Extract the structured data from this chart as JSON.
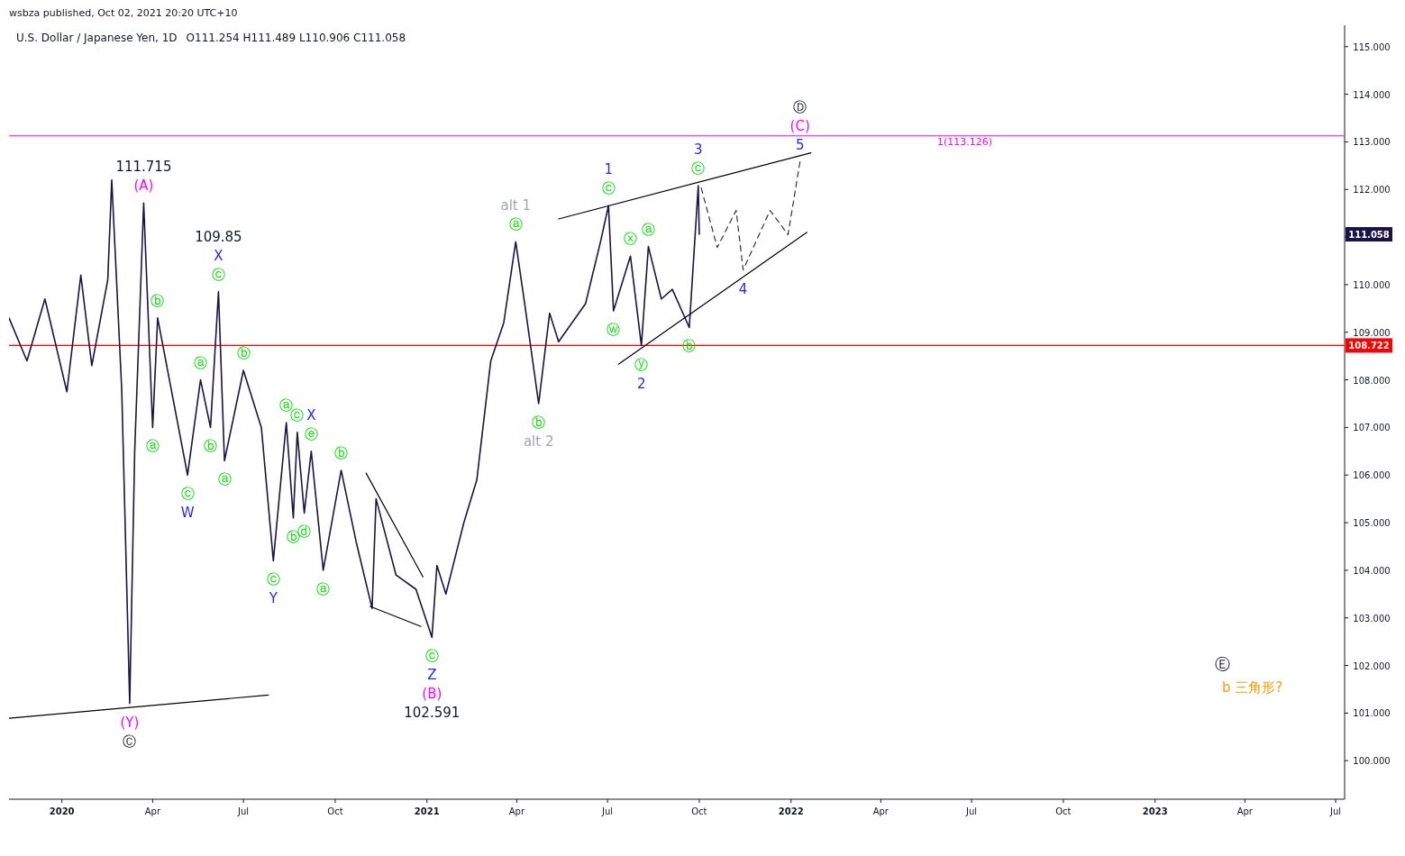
{
  "chart_data": {
    "type": "line",
    "title": "U.S. Dollar / Japanese Yen, 1D",
    "subtitle": "O111.254  H111.489  L110.906  C111.058",
    "xlim": [
      "2019-11-09",
      "2023-07-10"
    ],
    "ylim": [
      99.19,
      115.45
    ],
    "xticks": [
      {
        "value": "2020-01-01",
        "label": "2020"
      },
      {
        "value": "2020-04-01",
        "label": "Apr"
      },
      {
        "value": "2020-07-01",
        "label": "Jul"
      },
      {
        "value": "2020-10-01",
        "label": "Oct"
      },
      {
        "value": "2021-01-01",
        "label": "2021"
      },
      {
        "value": "2021-04-01",
        "label": "Apr"
      },
      {
        "value": "2021-07-01",
        "label": "Jul"
      },
      {
        "value": "2021-10-01",
        "label": "Oct"
      },
      {
        "value": "2022-01-01",
        "label": "2022"
      },
      {
        "value": "2022-04-01",
        "label": "Apr"
      },
      {
        "value": "2022-07-01",
        "label": "Jul"
      },
      {
        "value": "2022-10-01",
        "label": "Oct"
      },
      {
        "value": "2023-01-01",
        "label": "2023"
      },
      {
        "value": "2023-04-01",
        "label": "Apr"
      },
      {
        "value": "2023-07-01",
        "label": "Jul"
      }
    ],
    "yticks": [
      {
        "value": 100,
        "label": "100.000"
      },
      {
        "value": 101,
        "label": "101.000"
      },
      {
        "value": 102,
        "label": "102.000"
      },
      {
        "value": 103,
        "label": "103.000"
      },
      {
        "value": 104,
        "label": "104.000"
      },
      {
        "value": 105,
        "label": "105.000"
      },
      {
        "value": 106,
        "label": "106.000"
      },
      {
        "value": 107,
        "label": "107.000"
      },
      {
        "value": 108,
        "label": "108.000"
      },
      {
        "value": 109,
        "label": "109.000"
      },
      {
        "value": 110,
        "label": "110.000"
      },
      {
        "value": 111,
        "label": null
      },
      {
        "value": 112,
        "label": "112.000"
      },
      {
        "value": 113,
        "label": "113.000"
      },
      {
        "value": 114,
        "label": "114.000"
      },
      {
        "value": 115,
        "label": "115.000"
      }
    ],
    "grid": false,
    "marker": "none",
    "series": [
      {
        "type": "line",
        "color": "#1a1446",
        "line_style": "solid",
        "x": [
          "2019-11-09",
          "2019-11-27",
          "2019-12-15",
          "2020-01-06",
          "2020-01-20",
          "2020-01-31",
          "2020-02-16",
          "2020-02-20",
          "2020-03-01",
          "2020-03-09",
          "2020-03-14",
          "2020-03-23",
          "2020-04-01",
          "2020-04-06",
          "2020-05-06",
          "2020-05-19",
          "2020-05-29",
          "2020-06-06",
          "2020-06-12",
          "2020-07-01",
          "2020-07-19",
          "2020-07-31",
          "2020-08-13",
          "2020-08-20",
          "2020-08-24",
          "2020-08-31",
          "2020-09-07",
          "2020-09-19",
          "2020-10-07",
          "2020-10-22",
          "2020-11-07",
          "2020-11-11",
          "2020-12-01",
          "2020-12-21",
          "2021-01-06",
          "2021-01-11",
          "2021-01-20",
          "2021-02-07",
          "2021-02-20",
          "2021-03-06",
          "2021-03-19",
          "2021-03-31",
          "2021-04-09",
          "2021-04-23",
          "2021-05-04",
          "2021-05-13",
          "2021-06-09",
          "2021-06-24",
          "2021-07-02",
          "2021-07-07",
          "2021-07-24",
          "2021-08-04",
          "2021-08-11",
          "2021-08-24",
          "2021-09-04",
          "2021-09-21",
          "2021-09-30",
          "2021-10-01"
        ],
        "values": [
          109.3,
          108.4,
          109.7,
          107.75,
          110.2,
          108.3,
          110.1,
          112.2,
          107.8,
          101.2,
          106.5,
          111.715,
          107.0,
          109.3,
          106.0,
          108.0,
          107.0,
          109.85,
          106.3,
          108.2,
          107.0,
          104.2,
          107.1,
          105.1,
          106.9,
          105.2,
          106.5,
          104.0,
          106.1,
          104.6,
          103.2,
          105.5,
          103.9,
          103.6,
          102.591,
          104.1,
          103.5,
          105.0,
          105.9,
          108.4,
          109.2,
          110.9,
          109.6,
          107.5,
          109.4,
          108.8,
          109.6,
          110.9,
          111.66,
          109.45,
          110.6,
          108.72,
          110.8,
          109.7,
          109.9,
          109.1,
          112.08,
          111.058
        ]
      },
      {
        "type": "line",
        "color": "#000000",
        "line_style": "solid",
        "x": [
          "2019-11-09",
          "2020-07-26"
        ],
        "values": [
          100.89,
          101.38
        ]
      },
      {
        "type": "line",
        "color": "#000000",
        "line_style": "solid",
        "x": [
          "2020-11-01",
          "2020-12-28"
        ],
        "values": [
          106.04,
          103.86
        ]
      },
      {
        "type": "line",
        "color": "#000000",
        "line_style": "solid",
        "x": [
          "2020-11-05",
          "2020-12-26"
        ],
        "values": [
          103.24,
          102.82
        ]
      },
      {
        "type": "line",
        "color": "#000000",
        "line_style": "solid",
        "x": [
          "2021-05-13",
          "2022-01-21"
        ],
        "values": [
          111.38,
          112.77
        ]
      },
      {
        "type": "line",
        "color": "#000000",
        "line_style": "solid",
        "x": [
          "2021-07-12",
          "2022-01-17"
        ],
        "values": [
          108.33,
          111.1
        ]
      },
      {
        "type": "line",
        "color": "#333333",
        "line_style": "dashed",
        "x": [
          "2021-10-03",
          "2021-10-19",
          "2021-11-07",
          "2021-11-14",
          "2021-12-11",
          "2021-12-29",
          "2022-01-10"
        ],
        "values": [
          112.03,
          110.78,
          111.56,
          110.31,
          111.56,
          111.05,
          112.58
        ]
      }
    ],
    "ref_lines": [
      {
        "axis": "y",
        "value": 113.126,
        "label": "1(113.126)",
        "color": "#ff00ff"
      },
      {
        "axis": "y",
        "value": 108.722,
        "label": "108.722",
        "color": "#ff0000"
      }
    ],
    "annotations": [
      "wsbza published, Oct 02, 2021 20:20 UTC+10",
      "111.058",
      "Ⓔ",
      "b 三角形?",
      {
        "text": "(Y)",
        "x": "2020-03-09",
        "y": 101.2
      },
      {
        "text": "Ⓒ",
        "x": "2020-03-09",
        "y": 101.2
      },
      {
        "text": "(A)",
        "x": "2020-03-23",
        "y": 111.715
      },
      {
        "text": "111.715",
        "x": "2020-03-23",
        "y": 111.715
      },
      {
        "text": "ⓐ",
        "x": "2020-04-01",
        "y": 107.0
      },
      {
        "text": "ⓑ",
        "x": "2020-04-06",
        "y": 109.3
      },
      {
        "text": "ⓒ",
        "x": "2020-05-06",
        "y": 106.0
      },
      {
        "text": "W",
        "x": "2020-05-06",
        "y": 106.0
      },
      {
        "text": "ⓐ",
        "x": "2020-05-19",
        "y": 108.0
      },
      {
        "text": "ⓑ",
        "x": "2020-05-29",
        "y": 107.0
      },
      {
        "text": "ⓒ",
        "x": "2020-06-06",
        "y": 109.85
      },
      {
        "text": "X",
        "x": "2020-06-06",
        "y": 109.85
      },
      "109.85",
      {
        "text": "ⓐ",
        "x": "2020-06-12",
        "y": 106.3
      },
      {
        "text": "ⓑ",
        "x": "2020-07-01",
        "y": 108.2
      },
      {
        "text": "ⓒ",
        "x": "2020-07-31",
        "y": 104.2
      },
      {
        "text": "Y",
        "x": "2020-07-31",
        "y": 104.2
      },
      {
        "text": "ⓐ",
        "x": "2020-08-13",
        "y": 107.1
      },
      {
        "text": "ⓑ",
        "x": "2020-08-20",
        "y": 105.1
      },
      {
        "text": "ⓒ",
        "x": "2020-08-24",
        "y": 106.9
      },
      {
        "text": "ⓓ",
        "x": "2020-08-31",
        "y": 105.2
      },
      {
        "text": "ⓔ",
        "x": "2020-09-07",
        "y": 106.5
      },
      {
        "text": "X",
        "x": "2020-09-07",
        "y": 106.5
      },
      {
        "text": "ⓐ",
        "x": "2020-09-19",
        "y": 104.0
      },
      {
        "text": "ⓑ",
        "x": "2020-10-07",
        "y": 106.1
      },
      {
        "text": "ⓒ",
        "x": "2021-01-06",
        "y": 102.591
      },
      {
        "text": "Z",
        "x": "2021-01-06",
        "y": 102.591
      },
      "(B)",
      "102.591",
      {
        "text": "ⓐ",
        "x": "2021-03-31",
        "y": 110.9
      },
      {
        "text": "alt 1",
        "x": "2021-03-31",
        "y": 110.9
      },
      {
        "text": "ⓑ",
        "x": "2021-04-23",
        "y": 107.5
      },
      {
        "text": "alt 2",
        "x": "2021-04-23",
        "y": 107.5
      },
      {
        "text": "ⓒ",
        "x": "2021-07-02",
        "y": 111.66
      },
      {
        "text": "1",
        "x": "2021-07-02",
        "y": 111.66
      },
      {
        "text": "ⓦ",
        "x": "2021-07-07",
        "y": 109.45
      },
      {
        "text": "ⓧ",
        "x": "2021-07-24",
        "y": 110.6
      },
      {
        "text": "ⓨ",
        "x": "2021-08-04",
        "y": 108.72
      },
      {
        "text": "2",
        "x": "2021-08-04",
        "y": 108.72
      },
      {
        "text": "ⓐ",
        "x": "2021-08-11",
        "y": 110.8
      },
      {
        "text": "ⓑ",
        "x": "2021-09-21",
        "y": 109.1
      },
      {
        "text": "ⓒ",
        "x": "2021-09-30",
        "y": 112.08
      },
      {
        "text": "3",
        "x": "2021-09-30",
        "y": 112.08
      },
      {
        "text": "4",
        "x": "2021-11-14",
        "y": 110.31
      },
      {
        "text": "5",
        "x": "2022-01-10",
        "y": 112.58
      },
      {
        "text": "(C)",
        "x": "2022-01-10",
        "y": 112.58
      },
      "Ⓓ"
    ]
  }
}
